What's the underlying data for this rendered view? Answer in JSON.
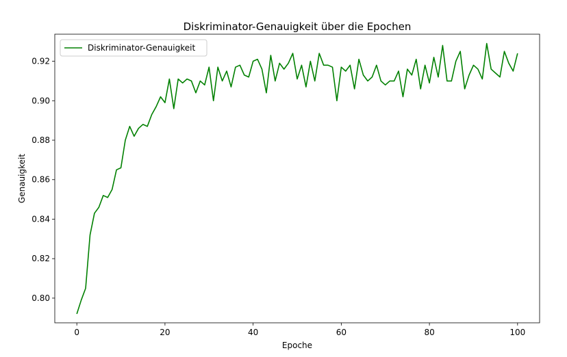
{
  "chart_data": {
    "type": "line",
    "title": "Diskriminator-Genauigkeit über die Epochen",
    "xlabel": "Epoche",
    "ylabel": "Genauigkeit",
    "xlim": [
      -5,
      105
    ],
    "ylim": [
      0.7875,
      0.9337
    ],
    "xticks": [
      0,
      20,
      40,
      60,
      80,
      100
    ],
    "yticks": [
      0.8,
      0.82,
      0.84,
      0.86,
      0.88,
      0.9,
      0.92
    ],
    "ytick_labels": [
      "0.80",
      "0.82",
      "0.84",
      "0.86",
      "0.88",
      "0.90",
      "0.92"
    ],
    "grid": false,
    "legend_position": "top-left",
    "series": [
      {
        "name": "Diskriminator-Genauigkeit",
        "color": "#008000",
        "x": [
          0,
          1,
          2,
          3,
          4,
          5,
          6,
          7,
          8,
          9,
          10,
          11,
          12,
          13,
          14,
          15,
          16,
          17,
          18,
          19,
          20,
          21,
          22,
          23,
          24,
          25,
          26,
          27,
          28,
          29,
          30,
          31,
          32,
          33,
          34,
          35,
          36,
          37,
          38,
          39,
          40,
          41,
          42,
          43,
          44,
          45,
          46,
          47,
          48,
          49,
          50,
          51,
          52,
          53,
          54,
          55,
          56,
          57,
          58,
          59,
          60,
          61,
          62,
          63,
          64,
          65,
          66,
          67,
          68,
          69,
          70,
          71,
          72,
          73,
          74,
          75,
          76,
          77,
          78,
          79,
          80,
          81,
          82,
          83,
          84,
          85,
          86,
          87,
          88,
          89,
          90,
          91,
          92,
          93,
          94,
          95,
          96,
          97,
          98,
          99,
          100
        ],
        "values": [
          0.792,
          0.799,
          0.805,
          0.832,
          0.843,
          0.846,
          0.852,
          0.851,
          0.855,
          0.865,
          0.866,
          0.88,
          0.887,
          0.882,
          0.886,
          0.888,
          0.887,
          0.893,
          0.897,
          0.902,
          0.899,
          0.911,
          0.896,
          0.911,
          0.909,
          0.911,
          0.91,
          0.904,
          0.91,
          0.908,
          0.917,
          0.9,
          0.917,
          0.91,
          0.915,
          0.907,
          0.917,
          0.918,
          0.913,
          0.912,
          0.92,
          0.921,
          0.916,
          0.904,
          0.923,
          0.91,
          0.919,
          0.916,
          0.919,
          0.924,
          0.911,
          0.918,
          0.907,
          0.92,
          0.91,
          0.924,
          0.918,
          0.918,
          0.917,
          0.9,
          0.917,
          0.915,
          0.918,
          0.906,
          0.921,
          0.913,
          0.91,
          0.912,
          0.918,
          0.91,
          0.908,
          0.91,
          0.91,
          0.915,
          0.902,
          0.916,
          0.913,
          0.921,
          0.906,
          0.918,
          0.909,
          0.922,
          0.912,
          0.928,
          0.91,
          0.91,
          0.92,
          0.925,
          0.906,
          0.913,
          0.918,
          0.916,
          0.911,
          0.929,
          0.916,
          0.914,
          0.912,
          0.925,
          0.919,
          0.915,
          0.924
        ]
      }
    ]
  }
}
